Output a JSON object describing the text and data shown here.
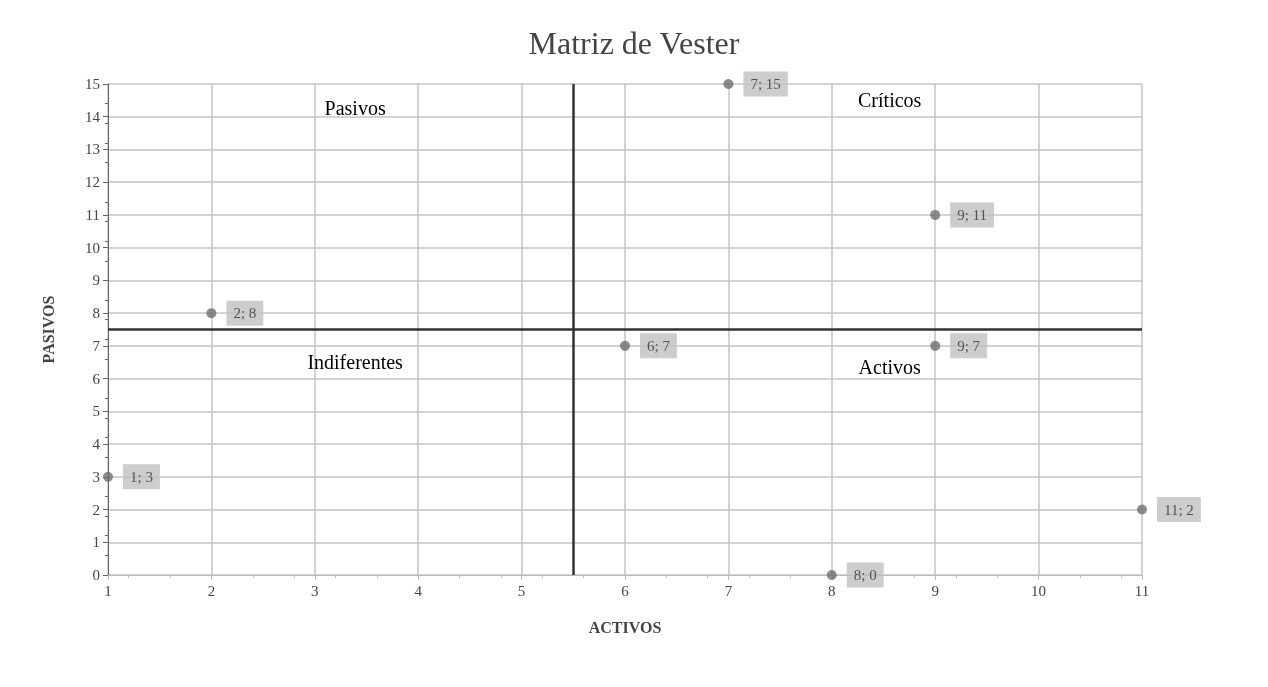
{
  "chart_data": {
    "type": "scatter",
    "title": "Matriz de Vester",
    "xlabel": "ACTIVOS",
    "ylabel": "PASIVOS",
    "x": [
      1,
      2,
      6,
      7,
      8,
      9,
      9,
      11
    ],
    "values": [
      3,
      8,
      7,
      15,
      0,
      11,
      7,
      2
    ],
    "value_labels": [
      "1; 3",
      "2; 8",
      "6; 7",
      "7; 15",
      "8; 0",
      "9; 11",
      "9; 7",
      "11; 2"
    ],
    "color": "#6e6e6e",
    "marker": "circle",
    "xlim": [
      1,
      11
    ],
    "xticks": [
      1,
      2,
      3,
      4,
      5,
      6,
      7,
      8,
      9,
      10,
      11
    ],
    "ylim": [
      0,
      15
    ],
    "yticks": [
      0,
      1,
      2,
      3,
      4,
      5,
      6,
      7,
      8,
      9,
      10,
      11,
      12,
      13,
      14,
      15
    ],
    "grid": true,
    "ref_lines": [
      {
        "axis": "x",
        "value": 5.5,
        "color": "#333333"
      },
      {
        "axis": "y",
        "value": 7.5,
        "color": "#333333"
      }
    ],
    "annotations": [
      "Pasivos",
      "Críticos",
      "Indiferentes",
      "Activos"
    ]
  }
}
